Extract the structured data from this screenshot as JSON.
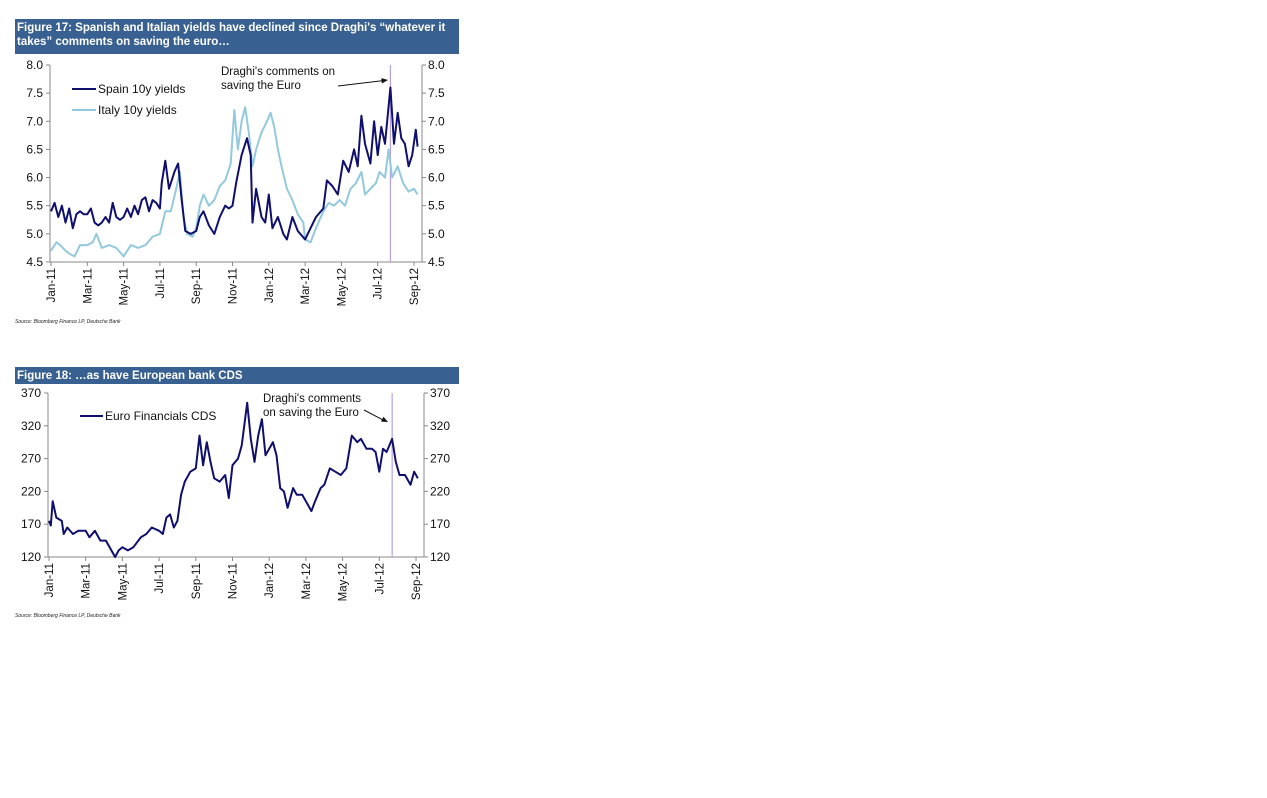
{
  "chart_data": [
    {
      "type": "line",
      "title": "Figure 17: Spanish and Italian yields have declined since Draghi's “whatever it takes” comments on saving the euro…",
      "source": "Source: Bloomberg Finance LP, Deutsche Bank",
      "x_unit": "months since Jan-11",
      "x_ticks": [
        "Jan-11",
        "Mar-11",
        "May-11",
        "Jul-11",
        "Sep-11",
        "Nov-11",
        "Jan-12",
        "Mar-12",
        "May-12",
        "Jul-12",
        "Sep-12"
      ],
      "y_ticks": [
        "8.0",
        "7.5",
        "7.0",
        "6.5",
        "6.0",
        "5.5",
        "5.0",
        "4.5"
      ],
      "ylim": [
        4.5,
        8.0
      ],
      "xlim": [
        0,
        20.4
      ],
      "annotation": {
        "text": [
          "Draghi's comments on",
          "saving  the Euro"
        ],
        "x": 18.7
      },
      "legend": "top-left",
      "colors": {
        "Spain 10y yields": "#0f0f6e",
        "Italy 10y yields": "#93c9dc",
        "marker": "#b7a0e6",
        "header": "#386090"
      },
      "series": [
        {
          "name": "Spain 10y yields",
          "x": [
            0,
            0.2,
            0.4,
            0.6,
            0.8,
            1.0,
            1.2,
            1.4,
            1.6,
            1.8,
            2.0,
            2.2,
            2.4,
            2.6,
            2.8,
            3.0,
            3.2,
            3.4,
            3.6,
            3.8,
            4.0,
            4.2,
            4.4,
            4.6,
            4.8,
            5.0,
            5.2,
            5.4,
            5.6,
            5.8,
            6.0,
            6.1,
            6.3,
            6.5,
            6.8,
            7.0,
            7.2,
            7.4,
            7.7,
            8.0,
            8.2,
            8.4,
            8.7,
            9.0,
            9.3,
            9.6,
            9.8,
            10.0,
            10.2,
            10.5,
            10.8,
            11.0,
            11.1,
            11.3,
            11.6,
            11.8,
            12.0,
            12.2,
            12.5,
            12.8,
            13.0,
            13.3,
            13.6,
            14.0,
            14.3,
            14.6,
            15.0,
            15.2,
            15.5,
            15.8,
            16.1,
            16.4,
            16.7,
            16.9,
            17.1,
            17.3,
            17.6,
            17.8,
            18.0,
            18.2,
            18.4,
            18.7,
            18.9,
            19.1,
            19.3,
            19.5,
            19.7,
            19.9,
            20.1,
            20.2
          ],
          "values": [
            5.4,
            5.55,
            5.3,
            5.5,
            5.2,
            5.45,
            5.1,
            5.35,
            5.4,
            5.35,
            5.35,
            5.45,
            5.2,
            5.15,
            5.2,
            5.3,
            5.2,
            5.55,
            5.3,
            5.25,
            5.3,
            5.45,
            5.3,
            5.5,
            5.35,
            5.6,
            5.65,
            5.4,
            5.6,
            5.55,
            5.45,
            5.9,
            6.3,
            5.8,
            6.1,
            6.25,
            5.6,
            5.05,
            5.0,
            5.05,
            5.3,
            5.4,
            5.15,
            5.0,
            5.3,
            5.5,
            5.45,
            5.5,
            5.9,
            6.4,
            6.7,
            6.4,
            5.2,
            5.8,
            5.3,
            5.2,
            5.7,
            5.1,
            5.3,
            5.0,
            4.9,
            5.3,
            5.05,
            4.9,
            5.1,
            5.3,
            5.45,
            5.95,
            5.85,
            5.7,
            6.3,
            6.1,
            6.5,
            6.2,
            7.1,
            6.6,
            6.25,
            7.0,
            6.4,
            6.9,
            6.6,
            7.6,
            6.6,
            7.15,
            6.7,
            6.6,
            6.2,
            6.4,
            6.85,
            6.55
          ]
        },
        {
          "name": "Italy 10y yields",
          "x": [
            0,
            0.3,
            0.5,
            0.8,
            1.0,
            1.3,
            1.6,
            2.0,
            2.3,
            2.5,
            2.8,
            3.2,
            3.6,
            4.0,
            4.4,
            4.8,
            5.2,
            5.6,
            6.0,
            6.3,
            6.6,
            6.9,
            7.1,
            7.3,
            7.5,
            7.8,
            8.0,
            8.2,
            8.4,
            8.7,
            9.0,
            9.3,
            9.6,
            9.9,
            10.1,
            10.3,
            10.5,
            10.7,
            10.9,
            11.1,
            11.3,
            11.6,
            11.9,
            12.1,
            12.3,
            12.5,
            12.7,
            13.0,
            13.3,
            13.6,
            13.9,
            14.0,
            14.3,
            14.6,
            15.0,
            15.3,
            15.6,
            15.9,
            16.2,
            16.5,
            16.8,
            17.1,
            17.3,
            17.6,
            17.9,
            18.1,
            18.4,
            18.6,
            18.8,
            19.1,
            19.4,
            19.7,
            20.0,
            20.2
          ],
          "values": [
            4.7,
            4.85,
            4.8,
            4.7,
            4.65,
            4.6,
            4.8,
            4.8,
            4.85,
            5.0,
            4.75,
            4.8,
            4.75,
            4.6,
            4.8,
            4.75,
            4.8,
            4.95,
            5.0,
            5.4,
            5.4,
            5.8,
            6.1,
            5.3,
            5.0,
            4.95,
            5.1,
            5.5,
            5.7,
            5.5,
            5.6,
            5.85,
            5.95,
            6.25,
            7.2,
            6.5,
            7.0,
            7.25,
            6.8,
            6.2,
            6.5,
            6.8,
            7.0,
            7.15,
            6.9,
            6.5,
            6.2,
            5.8,
            5.6,
            5.35,
            5.2,
            4.9,
            4.85,
            5.1,
            5.4,
            5.55,
            5.5,
            5.6,
            5.5,
            5.8,
            5.9,
            6.1,
            5.7,
            5.8,
            5.9,
            6.1,
            6.0,
            6.5,
            6.0,
            6.2,
            5.9,
            5.75,
            5.8,
            5.7
          ]
        }
      ]
    },
    {
      "type": "line",
      "title": "Figure 18: …as have European bank CDS",
      "source": "Source: Bloomberg Finance LP, Deutsche Bank",
      "x_unit": "months since Jan-11",
      "x_ticks": [
        "Jan-11",
        "Mar-11",
        "May-11",
        "Jul-11",
        "Sep-11",
        "Nov-11",
        "Jan-12",
        "Mar-12",
        "May-12",
        "Jul-12",
        "Sep-12"
      ],
      "y_ticks": [
        "370",
        "320",
        "270",
        "220",
        "170",
        "120"
      ],
      "ylim": [
        120,
        370
      ],
      "xlim": [
        0,
        20.4
      ],
      "annotation": {
        "text": [
          "Draghi's comments",
          "on saving the Euro"
        ],
        "x": 18.7
      },
      "legend": "top-left",
      "colors": {
        "Euro Financials CDS": "#0f0f6e",
        "marker": "#b7a0e6",
        "header": "#386090"
      },
      "series": [
        {
          "name": "Euro Financials CDS",
          "x": [
            0,
            0.1,
            0.2,
            0.4,
            0.7,
            0.8,
            1.0,
            1.3,
            1.6,
            2.0,
            2.2,
            2.5,
            2.8,
            3.1,
            3.4,
            3.6,
            3.8,
            4.0,
            4.3,
            4.6,
            5.0,
            5.3,
            5.6,
            6.0,
            6.2,
            6.4,
            6.6,
            6.8,
            7.0,
            7.2,
            7.4,
            7.7,
            8.0,
            8.2,
            8.4,
            8.6,
            8.8,
            9.0,
            9.3,
            9.6,
            9.8,
            10.0,
            10.3,
            10.5,
            10.8,
            11.0,
            11.2,
            11.4,
            11.6,
            11.8,
            12.0,
            12.2,
            12.4,
            12.6,
            12.8,
            13.0,
            13.3,
            13.5,
            13.8,
            14.0,
            14.3,
            14.5,
            14.8,
            15.0,
            15.3,
            15.6,
            15.9,
            16.2,
            16.5,
            16.8,
            17.0,
            17.3,
            17.6,
            17.8,
            18.0,
            18.2,
            18.4,
            18.7,
            18.9,
            19.1,
            19.4,
            19.7,
            19.9,
            20.1
          ],
          "values": [
            175,
            168,
            205,
            180,
            175,
            155,
            165,
            155,
            160,
            160,
            150,
            160,
            145,
            145,
            130,
            120,
            130,
            135,
            130,
            135,
            150,
            155,
            165,
            160,
            155,
            180,
            185,
            165,
            175,
            215,
            235,
            250,
            255,
            305,
            260,
            295,
            265,
            240,
            235,
            245,
            210,
            260,
            270,
            290,
            355,
            300,
            265,
            305,
            330,
            275,
            285,
            295,
            275,
            225,
            220,
            195,
            225,
            215,
            215,
            205,
            190,
            205,
            225,
            230,
            255,
            250,
            245,
            255,
            305,
            295,
            300,
            285,
            285,
            280,
            250,
            285,
            280,
            300,
            265,
            245,
            245,
            230,
            250,
            240
          ]
        }
      ]
    }
  ]
}
